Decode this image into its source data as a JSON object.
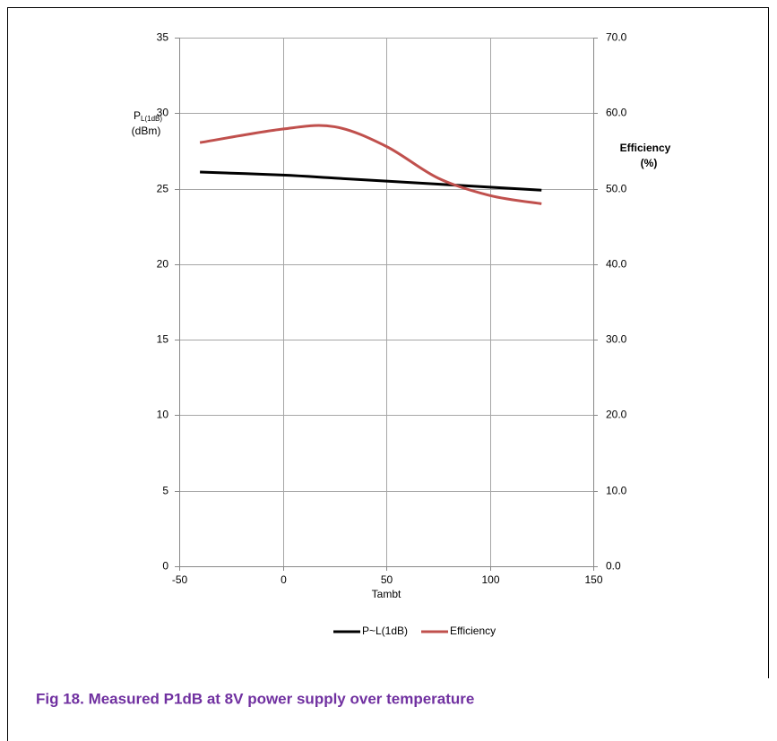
{
  "chart_data": {
    "type": "line",
    "caption": "Fig 18. Measured P1dB at 8V power supply over temperature",
    "xlabel": "Tambt",
    "ylabel": {
      "main": "P",
      "sub": "L(1dB)",
      "unit": "(dBm)"
    },
    "y2label": {
      "main": "Efficiency",
      "unit": "(%)"
    },
    "x": [
      -40,
      0,
      25,
      50,
      75,
      100,
      125
    ],
    "series": [
      {
        "name": "P~L(1dB)",
        "color": "#000000",
        "values": [
          26.1,
          25.9,
          25.7,
          25.5,
          25.3,
          25.1,
          24.9
        ]
      },
      {
        "name": "Efficiency",
        "color": "#c0504d",
        "axis": "y2",
        "values": [
          56.1,
          57.9,
          58.2,
          55.6,
          51.4,
          49.1,
          48.0
        ]
      }
    ],
    "xlim": [
      -50,
      150
    ],
    "xticks": [
      -50,
      0,
      50,
      100,
      150
    ],
    "ylim": [
      0,
      35
    ],
    "yticks": [
      0,
      5,
      10,
      15,
      20,
      25,
      30,
      35
    ],
    "y2lim": [
      0,
      70
    ],
    "y2ticks": [
      {
        "value": 0,
        "label": "0.0"
      },
      {
        "value": 10,
        "label": "10.0"
      },
      {
        "value": 20,
        "label": "20.0"
      },
      {
        "value": 30,
        "label": "30.0"
      },
      {
        "value": 40,
        "label": "40.0"
      },
      {
        "value": 50,
        "label": "50.0"
      },
      {
        "value": 60,
        "label": "60.0"
      },
      {
        "value": 70,
        "label": "70.0"
      }
    ],
    "grid": true
  }
}
